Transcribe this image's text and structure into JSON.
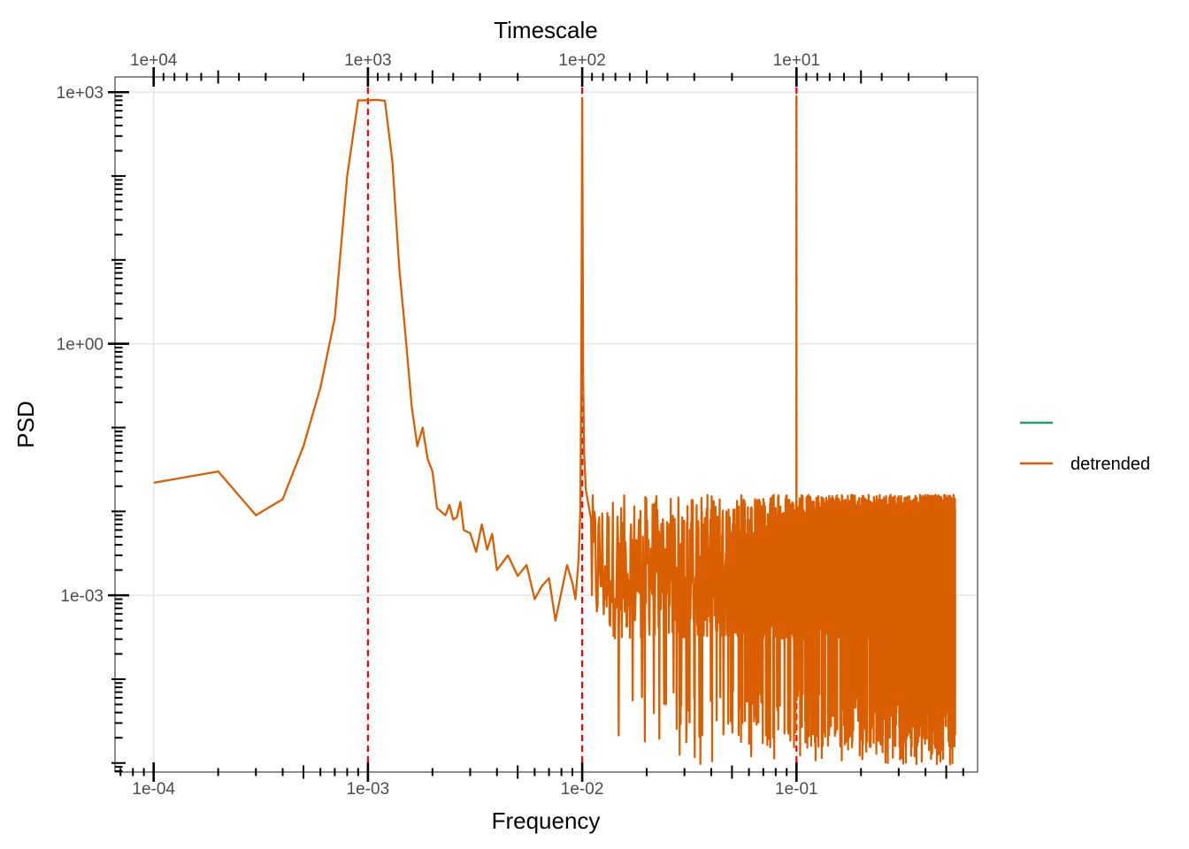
{
  "chart_data": {
    "type": "line",
    "title": "",
    "xlabel": "Frequency",
    "ylabel": "PSD",
    "x2label": "Timescale",
    "x_scale": "log",
    "y_scale": "log",
    "xlim": [
      6.6e-05,
      0.7
    ],
    "ylim": [
      7.8e-06,
      1520
    ],
    "x_ticks": [
      0.0001,
      0.001,
      0.01,
      0.1
    ],
    "x_tick_labels": [
      "1e-04",
      "1e-03",
      "1e-02",
      "1e-01"
    ],
    "x2_ticks": [
      10000,
      1000,
      100,
      10
    ],
    "x2_tick_labels": [
      "1e+04",
      "1e+03",
      "1e+02",
      "1e+01"
    ],
    "y_ticks": [
      1000,
      1,
      0.001
    ],
    "y_tick_labels": [
      "1e+03",
      "1e+00",
      "1e-03"
    ],
    "grid": true,
    "legend_position": "right",
    "reference_lines": {
      "x": [
        0.001,
        0.01,
        0.1
      ],
      "color": "#ff0000",
      "style": "dashed"
    },
    "series": [
      {
        "name": "",
        "color": "#1b9e77",
        "x": [],
        "y": []
      },
      {
        "name": "detrended",
        "color": "#d95f02",
        "x": [
          0.0001,
          0.0002,
          0.0003,
          0.0004,
          0.0005,
          0.0006,
          0.0007,
          0.0008,
          0.0009,
          0.001,
          0.0011,
          0.0012,
          0.0013,
          0.0014,
          0.0015,
          0.0016,
          0.0017,
          0.0018,
          0.0019,
          0.002,
          0.0021,
          0.0022,
          0.0023,
          0.0024,
          0.0025,
          0.0026,
          0.0027,
          0.0028,
          0.003,
          0.0032,
          0.0034,
          0.0036,
          0.0038,
          0.004,
          0.0045,
          0.005,
          0.0055,
          0.006,
          0.0065,
          0.007,
          0.0075,
          0.008,
          0.0085,
          0.009,
          0.0093,
          0.0096,
          0.0098,
          0.0099,
          0.01,
          0.0101,
          0.0102,
          0.0104,
          0.0107,
          0.011
        ],
        "y": [
          0.022,
          0.03,
          0.009,
          0.014,
          0.06,
          0.3,
          2.0,
          100,
          800,
          800,
          810,
          790,
          150,
          8,
          1.2,
          0.18,
          0.06,
          0.1,
          0.042,
          0.03,
          0.011,
          0.0099,
          0.009,
          0.012,
          0.008,
          0.0085,
          0.013,
          0.006,
          0.0055,
          0.0033,
          0.007,
          0.0035,
          0.0054,
          0.002,
          0.003,
          0.0017,
          0.0023,
          0.0009,
          0.0013,
          0.0016,
          0.0005,
          0.0011,
          0.0023,
          0.0014,
          0.0009,
          0.0025,
          0.01,
          0.5,
          850,
          0.4,
          0.05,
          0.018,
          0.012,
          0.008
        ],
        "noise_region": {
          "x_start": 0.011,
          "x_end": 0.55,
          "y_typical_low": 0.0003,
          "y_typical_high": 0.01,
          "y_dips": [
            5e-05,
            2e-05,
            1.2e-05
          ],
          "spike_x": 0.1,
          "spike_y": 900
        }
      }
    ]
  }
}
